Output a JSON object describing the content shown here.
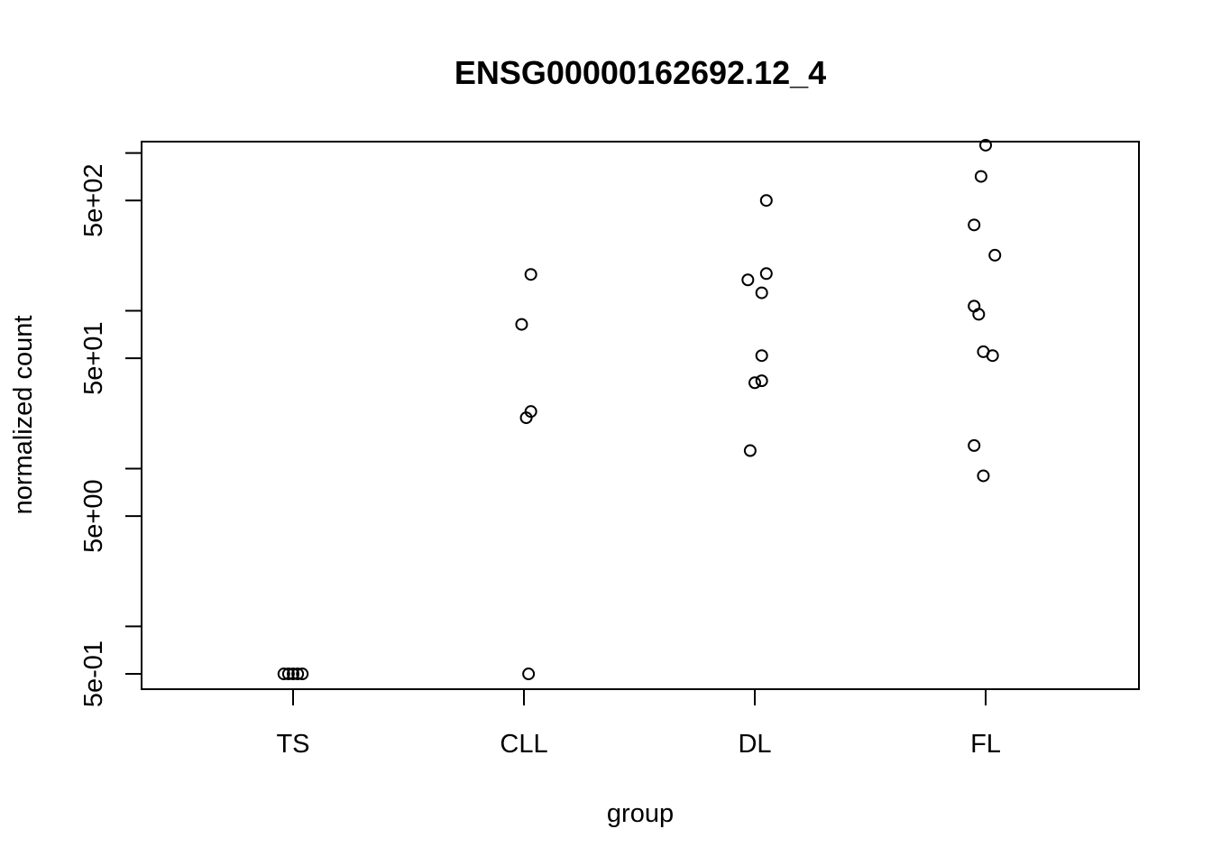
{
  "chart_data": {
    "type": "scatter",
    "title": "ENSG00000162692.12_4",
    "xlabel": "group",
    "ylabel": "normalized count",
    "y_scale": "log10",
    "ylim": [
      0.4,
      1180
    ],
    "x_categories": [
      "TS",
      "CLL",
      "DL",
      "FL"
    ],
    "y_major_ticks": [
      {
        "value": 0.5,
        "label": "5e-01"
      },
      {
        "value": 5,
        "label": "5e+00"
      },
      {
        "value": 50,
        "label": "5e+01"
      },
      {
        "value": 500,
        "label": "5e+02"
      }
    ],
    "y_minor_ticks": [
      1,
      10,
      100,
      1000
    ],
    "points": [
      {
        "group": "TS",
        "jitter": -0.04,
        "y": 0.5
      },
      {
        "group": "TS",
        "jitter": -0.02,
        "y": 0.5
      },
      {
        "group": "TS",
        "jitter": 0.0,
        "y": 0.5
      },
      {
        "group": "TS",
        "jitter": 0.02,
        "y": 0.5
      },
      {
        "group": "TS",
        "jitter": 0.04,
        "y": 0.5
      },
      {
        "group": "CLL",
        "jitter": 0.02,
        "y": 0.5
      },
      {
        "group": "CLL",
        "jitter": 0.01,
        "y": 21
      },
      {
        "group": "CLL",
        "jitter": 0.03,
        "y": 23
      },
      {
        "group": "CLL",
        "jitter": -0.01,
        "y": 82
      },
      {
        "group": "CLL",
        "jitter": 0.03,
        "y": 170
      },
      {
        "group": "DL",
        "jitter": -0.02,
        "y": 13
      },
      {
        "group": "DL",
        "jitter": 0.0,
        "y": 35
      },
      {
        "group": "DL",
        "jitter": 0.03,
        "y": 36
      },
      {
        "group": "DL",
        "jitter": 0.03,
        "y": 52
      },
      {
        "group": "DL",
        "jitter": 0.03,
        "y": 130
      },
      {
        "group": "DL",
        "jitter": -0.03,
        "y": 157
      },
      {
        "group": "DL",
        "jitter": 0.05,
        "y": 172
      },
      {
        "group": "DL",
        "jitter": 0.05,
        "y": 500
      },
      {
        "group": "FL",
        "jitter": -0.01,
        "y": 9
      },
      {
        "group": "FL",
        "jitter": -0.05,
        "y": 14
      },
      {
        "group": "FL",
        "jitter": 0.03,
        "y": 52
      },
      {
        "group": "FL",
        "jitter": -0.01,
        "y": 55
      },
      {
        "group": "FL",
        "jitter": -0.03,
        "y": 95
      },
      {
        "group": "FL",
        "jitter": -0.05,
        "y": 107
      },
      {
        "group": "FL",
        "jitter": 0.04,
        "y": 225
      },
      {
        "group": "FL",
        "jitter": -0.05,
        "y": 350
      },
      {
        "group": "FL",
        "jitter": -0.02,
        "y": 710
      },
      {
        "group": "FL",
        "jitter": 0.0,
        "y": 1120
      }
    ]
  }
}
